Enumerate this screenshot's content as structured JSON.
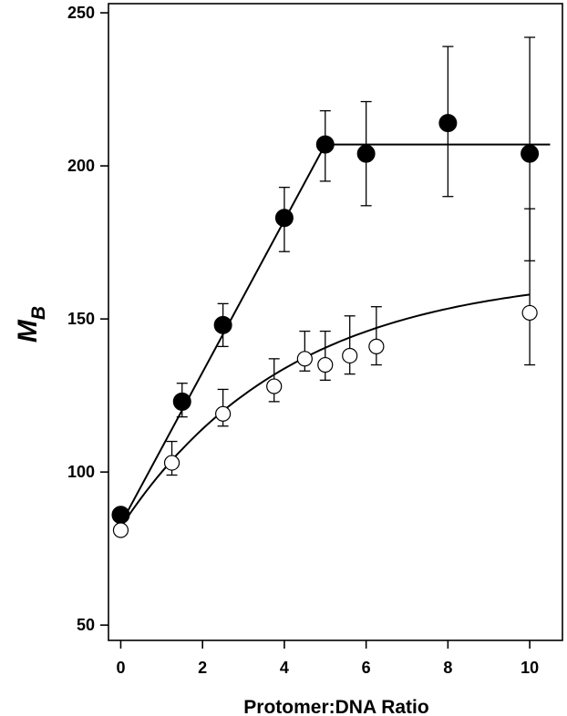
{
  "chart_data": {
    "type": "scatter",
    "xlabel": "Protomer:DNA Ratio",
    "ylabel": "M",
    "ylabel_subscript": "B",
    "xlim": [
      -0.3,
      10.8
    ],
    "ylim": [
      45,
      253
    ],
    "x_ticks": [
      0,
      2,
      4,
      6,
      8,
      10
    ],
    "y_ticks": [
      50,
      100,
      150,
      200,
      250
    ],
    "grid": false,
    "legend": "none",
    "series": [
      {
        "marker": "filled-circle",
        "color": "#000000",
        "points": [
          {
            "x": 0,
            "y": 86,
            "err_low": 86,
            "err_high": 86
          },
          {
            "x": 1.5,
            "y": 123,
            "err_low": 118,
            "err_high": 129
          },
          {
            "x": 2.5,
            "y": 148,
            "err_low": 141,
            "err_high": 155
          },
          {
            "x": 4,
            "y": 183,
            "err_low": 172,
            "err_high": 193
          },
          {
            "x": 5,
            "y": 207,
            "err_low": 195,
            "err_high": 218
          },
          {
            "x": 6,
            "y": 204,
            "err_low": 187,
            "err_high": 221
          },
          {
            "x": 8,
            "y": 214,
            "err_low": 190,
            "err_high": 239
          },
          {
            "x": 10,
            "y": 204,
            "err_low": 169,
            "err_high": 242
          }
        ],
        "fit": {
          "kind": "broken-line",
          "x": [
            0,
            5,
            10.5
          ],
          "y": [
            83,
            207,
            207
          ]
        }
      },
      {
        "marker": "open-circle",
        "color": "#000000",
        "points": [
          {
            "x": 0,
            "y": 81,
            "err_low": 81,
            "err_high": 81
          },
          {
            "x": 1.25,
            "y": 103,
            "err_low": 99,
            "err_high": 110
          },
          {
            "x": 2.5,
            "y": 119,
            "err_low": 115,
            "err_high": 127
          },
          {
            "x": 3.75,
            "y": 128,
            "err_low": 123,
            "err_high": 137
          },
          {
            "x": 4.5,
            "y": 137,
            "err_low": 133,
            "err_high": 146
          },
          {
            "x": 5,
            "y": 135,
            "err_low": 130,
            "err_high": 146
          },
          {
            "x": 5.6,
            "y": 138,
            "err_low": 132,
            "err_high": 151
          },
          {
            "x": 6.25,
            "y": 141,
            "err_low": 135,
            "err_high": 154
          },
          {
            "x": 10,
            "y": 152,
            "err_low": 135,
            "err_high": 186
          }
        ],
        "fit": {
          "kind": "saturating-curve",
          "y0": 82,
          "ymax": 165.3,
          "k": 0.243,
          "x_range": [
            0,
            10
          ]
        }
      }
    ]
  }
}
